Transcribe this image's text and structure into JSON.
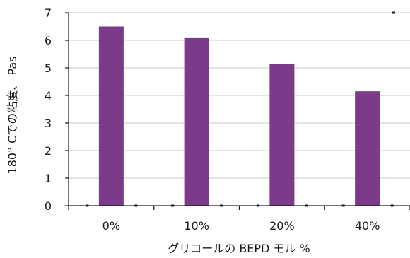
{
  "chart_data": {
    "type": "bar",
    "categories": [
      "0%",
      "10%",
      "20%",
      "40%"
    ],
    "values": [
      6.5,
      6.08,
      5.13,
      4.15
    ],
    "title": "",
    "xlabel": "グリコールの BEPD モル %",
    "ylabel": "180° Cでの粘度、 Pas",
    "ylim": [
      0,
      7
    ],
    "yticks": [
      0,
      1,
      2,
      3,
      4,
      5,
      6,
      7
    ],
    "grid": true,
    "legend": "none",
    "bar_color": "#7b3a8a"
  }
}
